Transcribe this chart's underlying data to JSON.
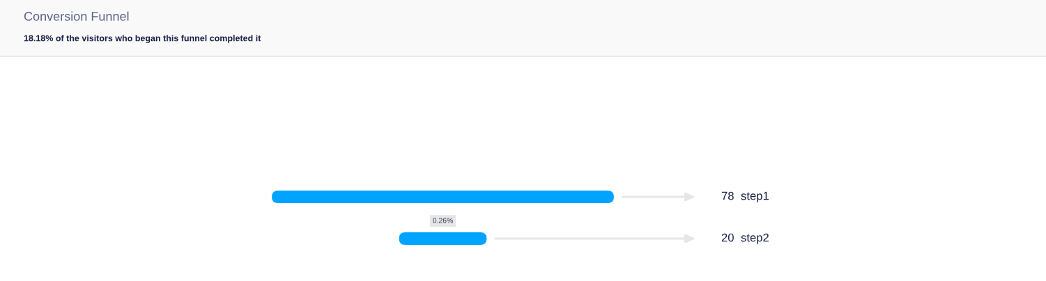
{
  "chart_data": {
    "type": "other",
    "title": "Conversion Funnel",
    "subtitle": "18.18% of the visitors who began this funnel completed it",
    "categories": [
      "step1",
      "step2"
    ],
    "values": [
      78,
      20
    ],
    "color": "#00a4ff",
    "data_labels": true,
    "annotations": [
      "0.26%"
    ]
  }
}
